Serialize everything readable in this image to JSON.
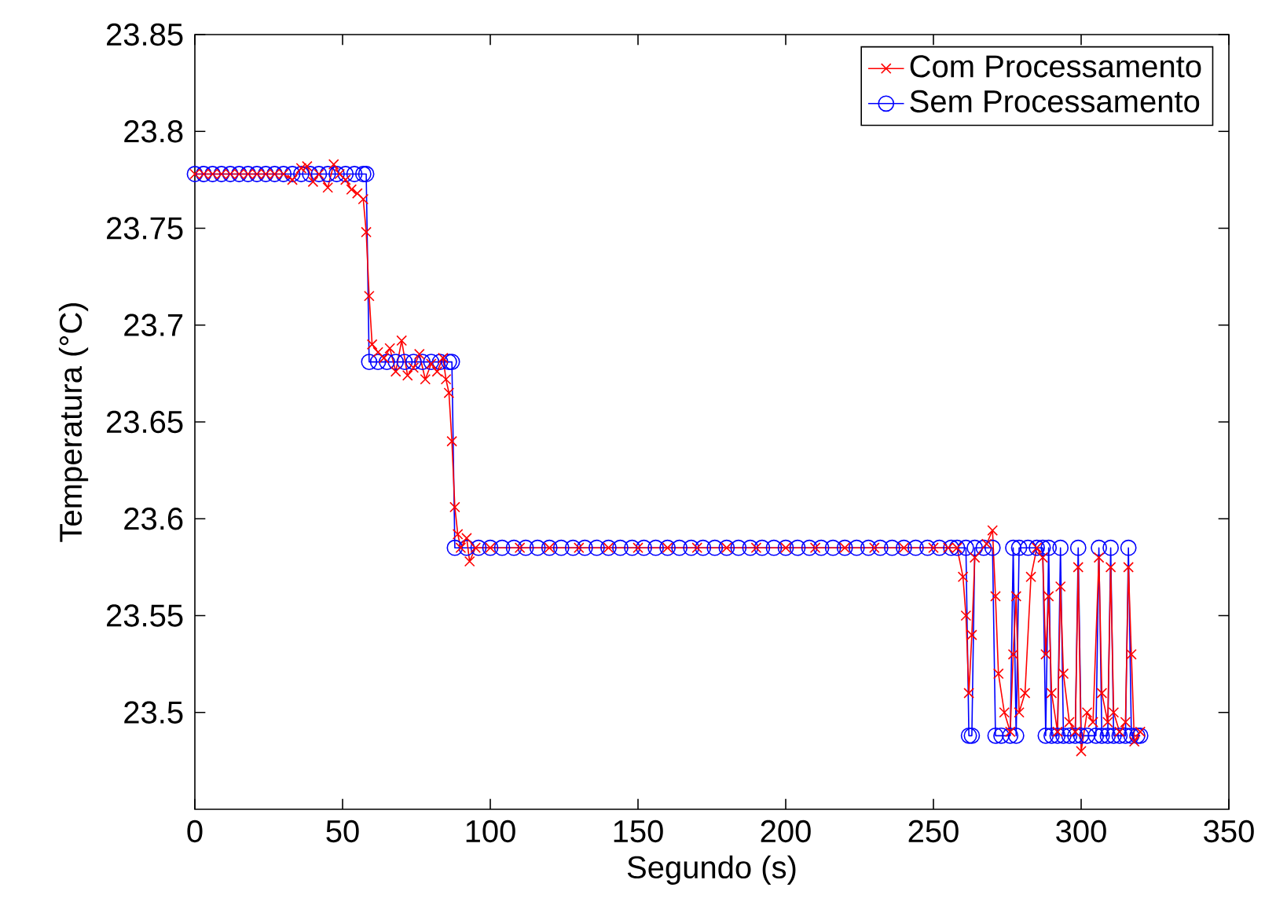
{
  "chart_data": {
    "type": "line",
    "xlabel": "Segundo (s)",
    "ylabel": "Temperatura (°C)",
    "xlim": [
      0,
      350
    ],
    "ylim": [
      23.45,
      23.85
    ],
    "xticks": [
      0,
      50,
      100,
      150,
      200,
      250,
      300,
      350
    ],
    "yticks": [
      23.5,
      23.55,
      23.6,
      23.65,
      23.7,
      23.75,
      23.8,
      23.85
    ],
    "legend": "top right",
    "series": [
      {
        "name": "Com Processamento",
        "color": "#ff0000",
        "marker": "cross",
        "x": [
          0,
          3,
          6,
          9,
          12,
          15,
          18,
          21,
          24,
          27,
          30,
          33,
          36,
          38,
          40,
          42,
          45,
          47,
          49,
          51,
          53,
          55,
          57,
          58,
          59,
          60,
          62,
          64,
          66,
          68,
          70,
          72,
          74,
          76,
          78,
          80,
          82,
          84,
          85,
          86,
          87,
          88,
          89,
          90,
          92,
          93,
          95,
          100,
          110,
          120,
          130,
          140,
          150,
          160,
          170,
          180,
          190,
          200,
          210,
          220,
          230,
          240,
          250,
          255,
          258,
          260,
          261,
          262,
          263,
          264,
          268,
          270,
          271,
          272,
          274,
          276,
          277,
          278,
          279,
          281,
          283,
          285,
          287,
          288,
          289,
          290,
          292,
          293,
          294,
          296,
          298,
          299,
          300,
          302,
          304,
          306,
          307,
          309,
          310,
          311,
          313,
          315,
          316,
          317,
          318,
          320
        ],
        "values": [
          23.778,
          23.778,
          23.778,
          23.778,
          23.778,
          23.778,
          23.778,
          23.778,
          23.778,
          23.778,
          23.778,
          23.775,
          23.781,
          23.782,
          23.774,
          23.778,
          23.771,
          23.783,
          23.778,
          23.775,
          23.77,
          23.768,
          23.765,
          23.748,
          23.715,
          23.69,
          23.686,
          23.683,
          23.688,
          23.676,
          23.692,
          23.674,
          23.678,
          23.685,
          23.672,
          23.68,
          23.676,
          23.683,
          23.672,
          23.665,
          23.64,
          23.606,
          23.592,
          23.585,
          23.59,
          23.578,
          23.585,
          23.585,
          23.585,
          23.585,
          23.585,
          23.585,
          23.585,
          23.585,
          23.585,
          23.585,
          23.585,
          23.585,
          23.585,
          23.585,
          23.585,
          23.585,
          23.585,
          23.585,
          23.585,
          23.57,
          23.55,
          23.51,
          23.54,
          23.58,
          23.587,
          23.594,
          23.56,
          23.52,
          23.5,
          23.49,
          23.53,
          23.56,
          23.5,
          23.51,
          23.57,
          23.585,
          23.58,
          23.53,
          23.56,
          23.51,
          23.49,
          23.565,
          23.52,
          23.495,
          23.49,
          23.575,
          23.48,
          23.5,
          23.495,
          23.58,
          23.51,
          23.495,
          23.575,
          23.5,
          23.49,
          23.495,
          23.575,
          23.53,
          23.485,
          23.49
        ]
      },
      {
        "name": "Sem Processamento",
        "color": "#0000ff",
        "marker": "circle",
        "x": [
          0,
          3,
          6,
          9,
          12,
          15,
          18,
          21,
          24,
          27,
          30,
          33,
          36,
          39,
          42,
          45,
          48,
          51,
          54,
          57,
          58,
          59,
          62,
          65,
          68,
          71,
          74,
          77,
          80,
          83,
          86,
          87,
          88,
          92,
          96,
          100,
          104,
          108,
          112,
          116,
          120,
          124,
          128,
          132,
          136,
          140,
          144,
          148,
          152,
          156,
          160,
          164,
          168,
          172,
          176,
          180,
          184,
          188,
          192,
          196,
          200,
          204,
          208,
          212,
          216,
          220,
          224,
          228,
          232,
          236,
          240,
          244,
          248,
          252,
          256,
          258,
          261,
          262,
          263,
          264,
          267,
          270,
          271,
          273,
          276,
          277,
          278,
          279,
          282,
          285,
          287,
          288,
          289,
          290,
          292,
          293,
          294,
          296,
          298,
          299,
          300,
          302,
          305,
          306,
          307,
          309,
          310,
          311,
          313,
          315,
          316,
          317,
          319,
          320
        ],
        "values": [
          23.778,
          23.778,
          23.778,
          23.778,
          23.778,
          23.778,
          23.778,
          23.778,
          23.778,
          23.778,
          23.778,
          23.778,
          23.778,
          23.778,
          23.778,
          23.778,
          23.778,
          23.778,
          23.778,
          23.778,
          23.778,
          23.681,
          23.681,
          23.681,
          23.681,
          23.681,
          23.681,
          23.681,
          23.681,
          23.681,
          23.681,
          23.681,
          23.585,
          23.585,
          23.585,
          23.585,
          23.585,
          23.585,
          23.585,
          23.585,
          23.585,
          23.585,
          23.585,
          23.585,
          23.585,
          23.585,
          23.585,
          23.585,
          23.585,
          23.585,
          23.585,
          23.585,
          23.585,
          23.585,
          23.585,
          23.585,
          23.585,
          23.585,
          23.585,
          23.585,
          23.585,
          23.585,
          23.585,
          23.585,
          23.585,
          23.585,
          23.585,
          23.585,
          23.585,
          23.585,
          23.585,
          23.585,
          23.585,
          23.585,
          23.585,
          23.585,
          23.585,
          23.488,
          23.488,
          23.585,
          23.585,
          23.585,
          23.488,
          23.488,
          23.488,
          23.585,
          23.488,
          23.585,
          23.585,
          23.585,
          23.585,
          23.488,
          23.585,
          23.488,
          23.488,
          23.585,
          23.488,
          23.488,
          23.488,
          23.585,
          23.488,
          23.488,
          23.488,
          23.585,
          23.488,
          23.488,
          23.585,
          23.488,
          23.488,
          23.488,
          23.585,
          23.488,
          23.488,
          23.488
        ]
      }
    ]
  }
}
